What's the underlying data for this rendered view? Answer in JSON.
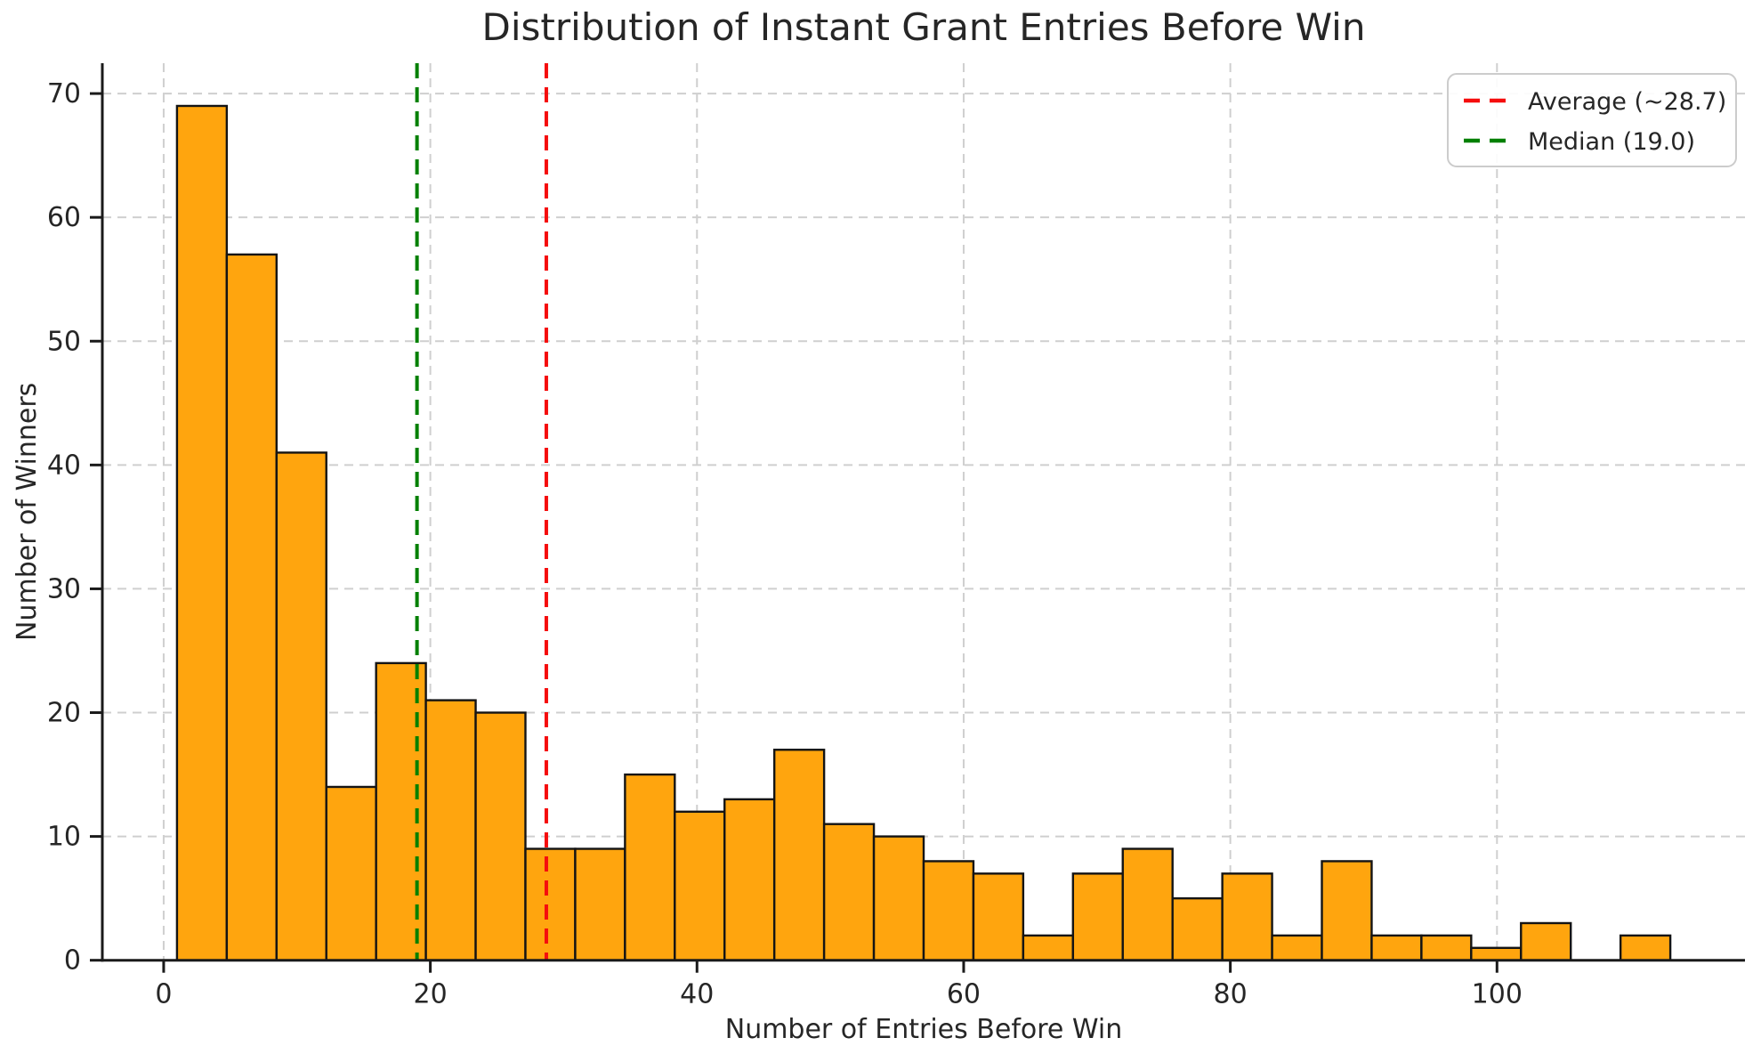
{
  "chart_data": {
    "type": "histogram",
    "title": "Distribution of Instant Grant Entries Before Win",
    "xlabel": "Number of Entries Before Win",
    "ylabel": "Number of Winners",
    "bin_start": 1,
    "bin_end": 113,
    "bin_count": 30,
    "counts": [
      69,
      57,
      41,
      14,
      24,
      21,
      20,
      9,
      9,
      15,
      12,
      13,
      17,
      11,
      10,
      8,
      7,
      2,
      7,
      9,
      5,
      7,
      2,
      8,
      2,
      2,
      1,
      3,
      0,
      2
    ],
    "xticks": [
      0,
      20,
      40,
      60,
      80,
      100
    ],
    "yticks": [
      0,
      10,
      20,
      30,
      40,
      50,
      60,
      70
    ],
    "xlim": [
      -4.6,
      118.6
    ],
    "ylim": [
      0,
      72.45
    ],
    "grid": true,
    "legend_position": "upper right",
    "bar_fill": "#ffa50e",
    "bar_edge": "#141414",
    "grid_color": "#cfcfcf",
    "spine_color": "#1a1a1a",
    "text_color": "#262626",
    "lines": [
      {
        "name": "average",
        "value": 28.7,
        "label": "Average (~28.7)",
        "color": "#f50d0d",
        "style": "dashed"
      },
      {
        "name": "median",
        "value": 19.0,
        "label": "Median (19.0)",
        "color": "#008000",
        "style": "dashed"
      }
    ]
  }
}
